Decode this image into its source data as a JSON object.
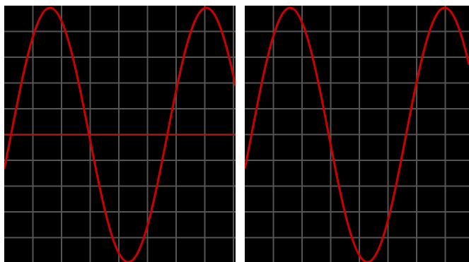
{
  "colors": {
    "background": "#000000",
    "grid": "#555555",
    "trace": "#cc0000",
    "baseline": "#aa1111",
    "frame": "#ffffff"
  },
  "scopes": [
    {
      "id": "left",
      "grid": {
        "columns": 8,
        "rows": 10
      },
      "trace": {
        "type": "sine",
        "periods_visible": 1.48,
        "phase": 0.6
      },
      "baseline_visible": true
    },
    {
      "id": "right",
      "grid": {
        "columns": 8,
        "rows": 10
      },
      "trace": {
        "type": "sine",
        "periods_visible": 1.45,
        "phase": 0.6
      },
      "baseline_visible": false
    }
  ]
}
